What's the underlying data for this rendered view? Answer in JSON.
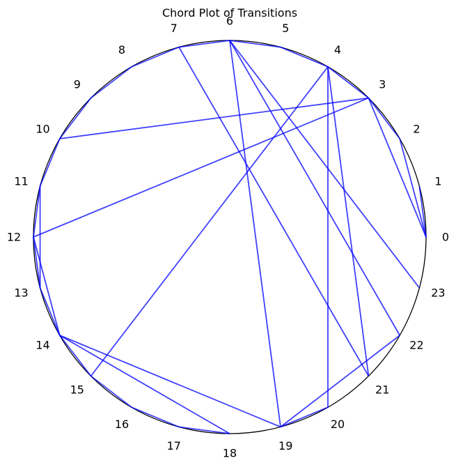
{
  "chart_data": {
    "type": "chord",
    "title": "Chord Plot of Transitions",
    "nodes": [
      "0",
      "1",
      "2",
      "3",
      "4",
      "5",
      "6",
      "7",
      "8",
      "9",
      "10",
      "11",
      "12",
      "13",
      "14",
      "15",
      "16",
      "17",
      "18",
      "19",
      "20",
      "21",
      "22",
      "23"
    ],
    "edges": [
      [
        0,
        1
      ],
      [
        0,
        2
      ],
      [
        0,
        3
      ],
      [
        2,
        3
      ],
      [
        3,
        4
      ],
      [
        3,
        10
      ],
      [
        3,
        12
      ],
      [
        4,
        5
      ],
      [
        4,
        15
      ],
      [
        4,
        20
      ],
      [
        4,
        21
      ],
      [
        5,
        6
      ],
      [
        6,
        7
      ],
      [
        6,
        19
      ],
      [
        6,
        22
      ],
      [
        6,
        23
      ],
      [
        7,
        8
      ],
      [
        7,
        21
      ],
      [
        8,
        9
      ],
      [
        9,
        10
      ],
      [
        10,
        11
      ],
      [
        11,
        12
      ],
      [
        11,
        13
      ],
      [
        12,
        13
      ],
      [
        12,
        14
      ],
      [
        13,
        14
      ],
      [
        14,
        15
      ],
      [
        14,
        18
      ],
      [
        14,
        19
      ],
      [
        15,
        16
      ],
      [
        16,
        17
      ],
      [
        17,
        18
      ],
      [
        19,
        20
      ],
      [
        19,
        22
      ]
    ],
    "colors": {
      "circle": "#000000",
      "chord": "#0000ff",
      "chord_opacity": 0.75
    }
  }
}
